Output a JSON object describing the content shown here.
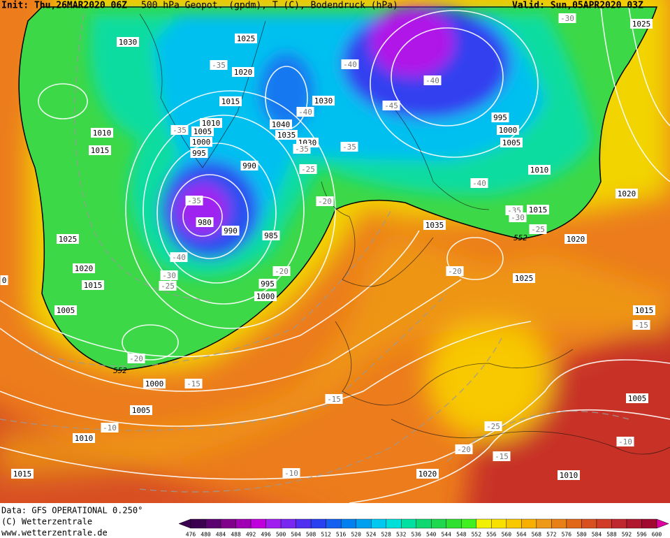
{
  "header": {
    "init": "Init: Thu,26MAR2020 06Z",
    "title": "500 hPa Geopot. (gpdm), T (C), Bodendruck (hPa)",
    "valid": "Valid: Sun,05APR2020 03Z"
  },
  "map": {
    "pressure_labels": [
      "1030",
      "1025",
      "1020",
      "1015",
      "1010",
      "1005",
      "1000",
      "995",
      "990",
      "980",
      "990",
      "985",
      "995",
      "1000",
      "1040",
      "1035",
      "1030",
      "1030",
      "995",
      "1000",
      "1005",
      "1010",
      "1015",
      "1020",
      "1020",
      "1025",
      "1035",
      "1025",
      "1015",
      "1005",
      "1010",
      "1015",
      "1025",
      "1020",
      "1015",
      "1005",
      "1000",
      "1005",
      "1010",
      "1015",
      "1020",
      "1010",
      "0"
    ],
    "temperature_labels": [
      "-35",
      "-35",
      "-40",
      "-40",
      "-45",
      "-40",
      "-30",
      "-35",
      "-35",
      "-25",
      "-20",
      "-35",
      "-40",
      "-30",
      "-25",
      "-20",
      "-20",
      "-15",
      "-15",
      "-10",
      "-10",
      "-20",
      "-40",
      "-35",
      "-30",
      "-25",
      "-25",
      "-20",
      "-15",
      "-10",
      "-15"
    ],
    "contour_labels": [
      "552",
      "552"
    ]
  },
  "footer": {
    "data": "Data: GFS OPERATIONAL 0.250°",
    "copyright": "(C) Wetterzentrale",
    "url": "www.wetterzentrale.de"
  },
  "legend": {
    "values": [
      476,
      480,
      484,
      488,
      492,
      496,
      500,
      504,
      508,
      512,
      516,
      520,
      524,
      528,
      532,
      536,
      540,
      544,
      548,
      552,
      556,
      560,
      564,
      568,
      572,
      576,
      580,
      584,
      588,
      592,
      596,
      600
    ],
    "colors": [
      "#3c0050",
      "#5a0070",
      "#80008c",
      "#a000b4",
      "#c000dc",
      "#a020f0",
      "#7828f0",
      "#5030f0",
      "#2840f0",
      "#1460f0",
      "#0080f0",
      "#00a0f0",
      "#00c8f0",
      "#00e0d8",
      "#00e0a0",
      "#10d870",
      "#20d850",
      "#30e030",
      "#40f020",
      "#f0f000",
      "#f8e000",
      "#f8c800",
      "#f8b000",
      "#f09818",
      "#e88018",
      "#e06818",
      "#d85020",
      "#d03c28",
      "#c02830",
      "#b01830",
      "#a00830",
      "#e000a0"
    ]
  }
}
